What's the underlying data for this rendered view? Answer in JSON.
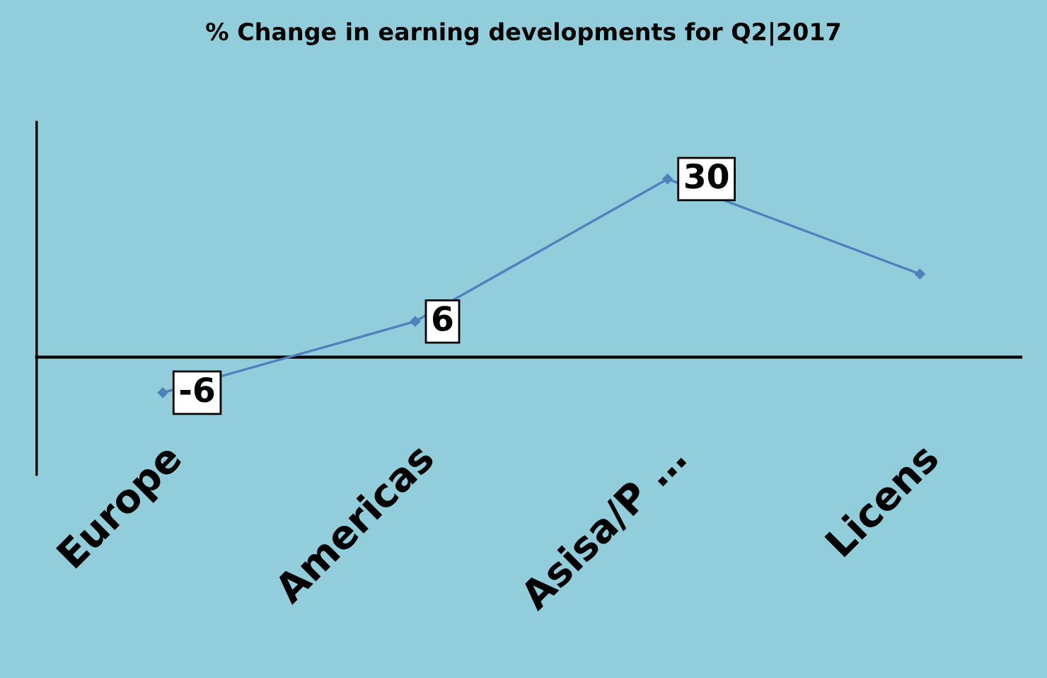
{
  "chart_data": {
    "type": "line",
    "title": "% Change in earning developments for Q2|2017",
    "categories": [
      "Europe",
      "Americas",
      "Asisa/P …",
      "Licens"
    ],
    "series": [
      {
        "color": "#4f81bd",
        "values": [
          -6,
          6,
          30,
          14
        ],
        "value_labels": [
          "-6",
          "6",
          "30",
          null
        ]
      }
    ],
    "tick_labels": "x",
    "grid": false,
    "legend": false,
    "marker": "diamond",
    "line_style": "solid"
  }
}
